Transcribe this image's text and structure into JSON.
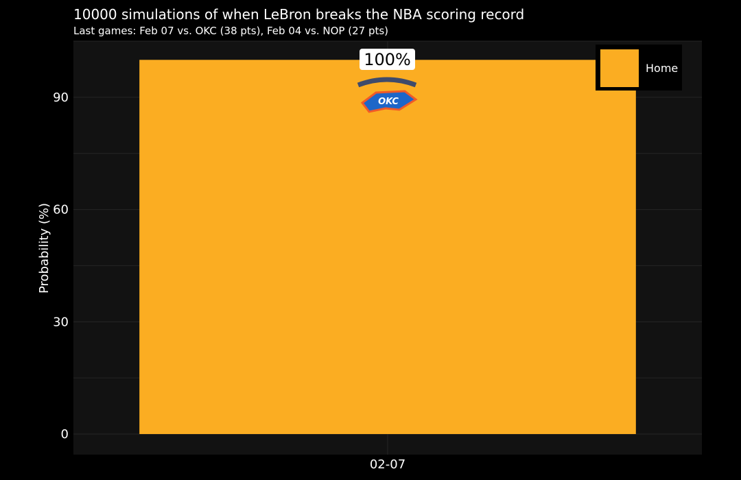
{
  "chart_data": {
    "type": "bar",
    "title": "10000 simulations of when LeBron breaks the NBA scoring record",
    "subtitle": "Last games: Feb 07 vs. OKC (38 pts), Feb 04 vs. NOP (27 pts)",
    "xlabel": "",
    "ylabel": "Probability (%)",
    "categories": [
      "02-07"
    ],
    "series": [
      {
        "name": "Home",
        "values": [
          100
        ],
        "color": "#fbad22"
      }
    ],
    "data_labels": [
      "100%"
    ],
    "opponent_logos": [
      "OKC"
    ],
    "yticks": [
      0,
      30,
      60,
      90
    ],
    "ylim": [
      -5.5,
      105
    ],
    "grid": true,
    "legend_position": "top-right",
    "colors": {
      "background": "#000000",
      "panel": "#121212",
      "grid": "#262626",
      "bar": "#fbad22"
    }
  }
}
